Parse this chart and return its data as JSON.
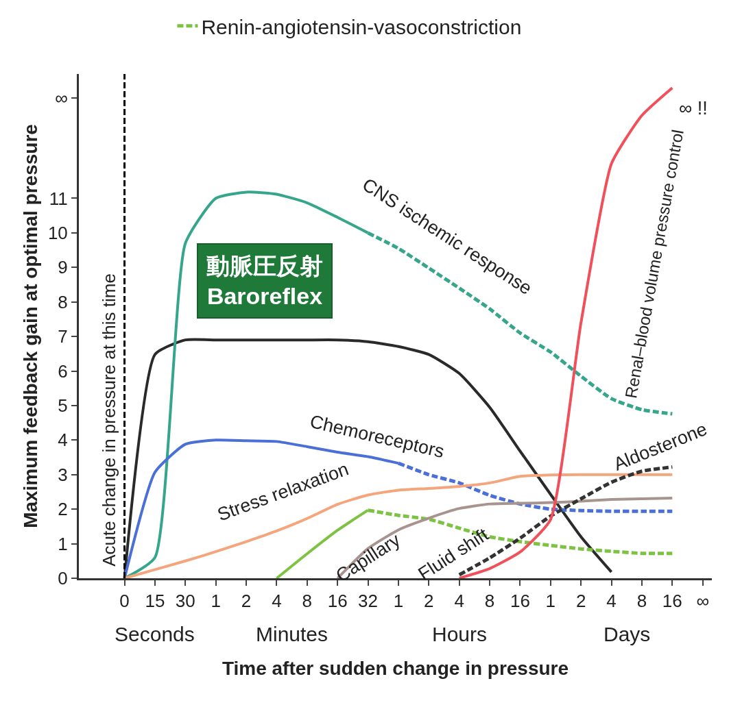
{
  "chart_data": {
    "type": "line",
    "xlabel": "Time after sudden change in pressure",
    "ylabel": "Maximum feedback gain at optimal pressure",
    "categories": [
      "0",
      "15",
      "30",
      "1",
      "2",
      "4",
      "8",
      "16",
      "32",
      "1",
      "2",
      "4",
      "8",
      "16",
      "1",
      "2",
      "4",
      "8",
      "16",
      "∞"
    ],
    "ylim": [
      0,
      14.6
    ],
    "yticks": [
      0,
      1,
      2,
      3,
      4,
      5,
      6,
      7,
      8,
      9,
      10,
      11,
      {
        "value": 13.9,
        "label": "∞"
      }
    ],
    "grid": false,
    "legend": "top",
    "marker": "none",
    "series": [
      {
        "color": "#2a2a2a",
        "line_style": "solid",
        "values": [
          0,
          6.48,
          6.9,
          6.9,
          6.9,
          6.9,
          6.9,
          6.9,
          6.85,
          6.71,
          6.48,
          5.93,
          4.95,
          3.68,
          2.43,
          1.2,
          0.18,
          null,
          null,
          null
        ]
      },
      {
        "color": "#35a68c",
        "line_style": "solid",
        "values": [
          0,
          0.6,
          9.7,
          11.0,
          11.18,
          11.12,
          10.87,
          10.45,
          10.0,
          null,
          null,
          null,
          null,
          null,
          null,
          null,
          null,
          null,
          null,
          null
        ]
      },
      {
        "color": "#35a68c",
        "line_style": "dashed",
        "values": [
          null,
          null,
          null,
          null,
          null,
          null,
          null,
          null,
          10.0,
          9.55,
          8.98,
          8.4,
          7.8,
          7.1,
          6.55,
          5.85,
          5.2,
          4.88,
          4.76,
          null
        ]
      },
      {
        "color": "#4a6fd6",
        "line_style": "solid",
        "values": [
          0,
          3.07,
          3.88,
          4.0,
          3.98,
          3.96,
          3.81,
          3.65,
          3.52,
          3.33,
          null,
          null,
          null,
          null,
          null,
          null,
          null,
          null,
          null,
          null
        ]
      },
      {
        "color": "#4a6fd6",
        "line_style": "dashed",
        "values": [
          null,
          null,
          null,
          null,
          null,
          null,
          null,
          null,
          null,
          3.33,
          3.0,
          2.76,
          2.4,
          2.15,
          2.0,
          1.96,
          1.94,
          1.94,
          1.94,
          null
        ]
      },
      {
        "color": "#f5a57c",
        "line_style": "solid",
        "values": [
          0,
          0.25,
          0.5,
          0.77,
          1.06,
          1.37,
          1.73,
          2.14,
          2.41,
          2.55,
          2.6,
          2.66,
          2.76,
          2.95,
          2.99,
          3.0,
          3.0,
          3.0,
          3.0,
          null
        ]
      },
      {
        "color": "#7dc242",
        "line_style": "solid",
        "values": [
          null,
          null,
          null,
          null,
          null,
          0,
          0.71,
          1.39,
          1.97,
          null,
          null,
          null,
          null,
          null,
          null,
          null,
          null,
          null,
          null,
          null
        ]
      },
      {
        "name": "Renin-angiotensin-vasoconstriction",
        "color": "#7dc242",
        "line_style": "dashed",
        "values": [
          null,
          null,
          null,
          null,
          null,
          null,
          null,
          null,
          1.97,
          1.82,
          1.71,
          1.45,
          1.2,
          1.06,
          0.95,
          0.85,
          0.78,
          0.72,
          0.72,
          null
        ]
      },
      {
        "color": "#a8948f",
        "line_style": "solid",
        "values": [
          null,
          null,
          null,
          null,
          null,
          null,
          null,
          0,
          0.86,
          1.4,
          1.74,
          2.02,
          2.15,
          2.17,
          2.19,
          2.23,
          2.28,
          2.3,
          2.32,
          null
        ]
      },
      {
        "color": "#333333",
        "line_style": "dashed",
        "values": [
          null,
          null,
          null,
          null,
          null,
          null,
          null,
          null,
          null,
          null,
          null,
          0.1,
          0.59,
          1.16,
          1.8,
          2.3,
          2.78,
          3.1,
          3.22,
          null
        ]
      },
      {
        "color": "#f0505a",
        "line_style": "solid",
        "values": [
          null,
          null,
          null,
          null,
          null,
          null,
          null,
          null,
          null,
          null,
          null,
          0,
          0.28,
          0.76,
          1.7,
          7.4,
          12.0,
          13.4,
          14.2,
          null
        ]
      }
    ],
    "ref_lines": [
      {
        "axis": "x",
        "value": "0",
        "label": "Acute change in pressure at this time",
        "line_style": "dashed",
        "color": "#000000"
      }
    ],
    "annotations": [
      "CNS ischemic response",
      "Chemoreceptors",
      "Stress relaxation",
      "Capillary",
      "Fluid shift",
      "Aldosterone",
      "Renal–blood volume pressure control",
      "∞ !!",
      "動脈圧反射\nBaroreflex",
      "Seconds",
      "Minutes",
      "Hours",
      "Days"
    ]
  }
}
